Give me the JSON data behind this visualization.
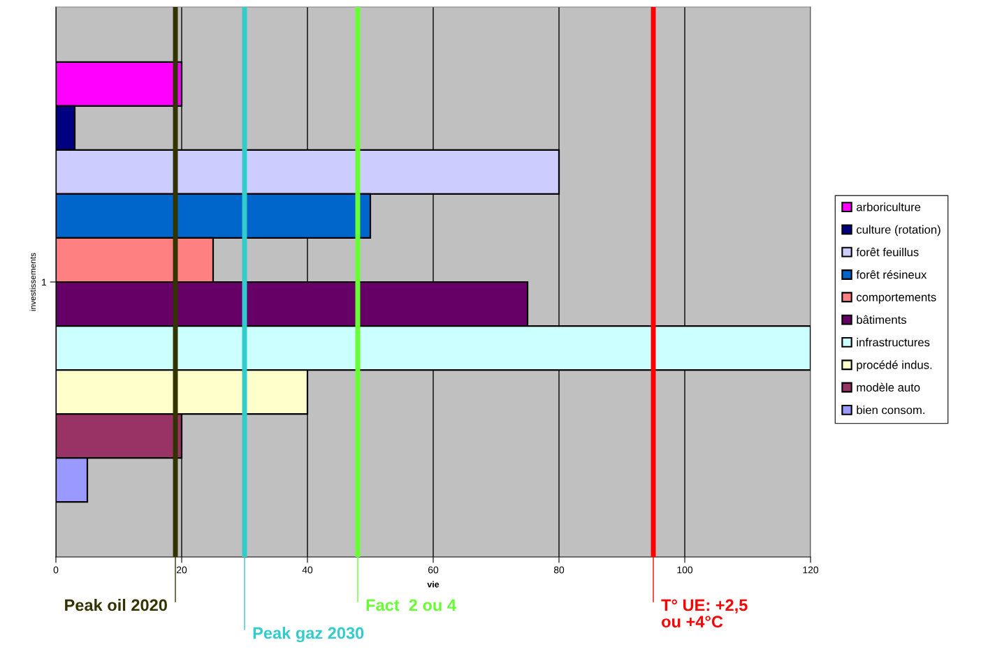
{
  "chart_data": {
    "type": "bar",
    "orientation": "horizontal",
    "categories": [
      "1"
    ],
    "xlabel": "vie",
    "ylabel": "investissements",
    "xlim": [
      0,
      120
    ],
    "xticks": [
      0,
      20,
      40,
      60,
      80,
      100,
      120
    ],
    "grid": "x",
    "legend": "right",
    "series": [
      {
        "name": "arboriculture",
        "color": "#ff00ff",
        "values": [
          20
        ]
      },
      {
        "name": "culture (rotation)",
        "color": "#000080",
        "values": [
          3
        ]
      },
      {
        "name": "forêt feuillus",
        "color": "#ccccff",
        "values": [
          80
        ]
      },
      {
        "name": "forêt résineux",
        "color": "#0066cc",
        "values": [
          50
        ]
      },
      {
        "name": "comportements",
        "color": "#ff8080",
        "values": [
          25
        ]
      },
      {
        "name": "bâtiments",
        "color": "#660066",
        "values": [
          75
        ]
      },
      {
        "name": "infrastructures",
        "color": "#ccffff",
        "values": [
          120
        ]
      },
      {
        "name": "procédé indus.",
        "color": "#ffffcc",
        "values": [
          40
        ]
      },
      {
        "name": "modèle auto",
        "color": "#993366",
        "values": [
          20
        ]
      },
      {
        "name": "bien consom.",
        "color": "#9999ff",
        "values": [
          5
        ]
      }
    ],
    "ref_lines": [
      {
        "axis": "x",
        "value": 19,
        "label": "Peak oil 2020",
        "color": "#333300"
      },
      {
        "axis": "x",
        "value": 30,
        "label": "Peak gaz 2030",
        "color": "#33cccc"
      },
      {
        "axis": "x",
        "value": 48,
        "label": "Fact  2 ou 4",
        "color": "#66ff33"
      },
      {
        "axis": "x",
        "value": 95,
        "label": "T° UE: +2,5\nou +4°C",
        "color": "#ff0000"
      }
    ]
  }
}
